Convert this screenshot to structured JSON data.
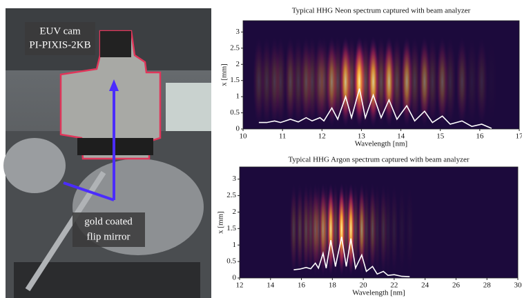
{
  "photo": {
    "camera_label": [
      "EUV cam",
      "PI-PIXIS-2KB"
    ],
    "mirror_label": [
      "gold coated",
      "flip mirror"
    ]
  },
  "chart_data": [
    {
      "type": "heatmap-line",
      "title": "Typical HHG Neon spectrum captured with beam analyzer",
      "xlabel": "Wavelength [nm]",
      "ylabel": "x [mm]",
      "xlim": [
        10,
        17
      ],
      "ylim": [
        0,
        3.35
      ],
      "xticks": [
        10,
        11,
        12,
        13,
        14,
        15,
        16,
        17
      ],
      "yticks": [
        0,
        0.5,
        1,
        1.5,
        2,
        2.5,
        3
      ],
      "series": [
        {
          "color": "#ffffff",
          "x": [
            10.4,
            10.6,
            10.8,
            10.95,
            11.2,
            11.4,
            11.6,
            11.75,
            11.95,
            12.05,
            12.25,
            12.4,
            12.6,
            12.75,
            12.95,
            13.1,
            13.3,
            13.5,
            13.7,
            13.9,
            14.15,
            14.35,
            14.6,
            14.8,
            15.05,
            15.25,
            15.55,
            15.8,
            16.05,
            16.3
          ],
          "values": [
            0.2,
            0.2,
            0.25,
            0.2,
            0.3,
            0.22,
            0.35,
            0.25,
            0.35,
            0.25,
            0.65,
            0.3,
            1.0,
            0.35,
            1.25,
            0.35,
            1.05,
            0.35,
            0.9,
            0.3,
            0.72,
            0.25,
            0.55,
            0.2,
            0.4,
            0.15,
            0.25,
            0.08,
            0.15,
            0.02
          ]
        }
      ]
    },
    {
      "type": "heatmap-line",
      "title": "Typical HHG Argon spectrum captured with beam analyzer",
      "xlabel": "Wavelength [nm]",
      "ylabel": "x [mm]",
      "xlim": [
        12,
        30
      ],
      "ylim": [
        0,
        3.37
      ],
      "xticks": [
        12,
        14,
        16,
        18,
        20,
        22,
        24,
        26,
        28,
        30
      ],
      "yticks": [
        0,
        0.5,
        1,
        1.5,
        2,
        2.5,
        3
      ],
      "series": [
        {
          "color": "#ffffff",
          "x": [
            15.5,
            15.9,
            16.3,
            16.6,
            16.9,
            17.1,
            17.4,
            17.6,
            17.9,
            18.2,
            18.6,
            18.9,
            19.2,
            19.5,
            19.9,
            20.2,
            20.6,
            20.9,
            21.3,
            21.6,
            22,
            22.5,
            23
          ],
          "values": [
            0.25,
            0.27,
            0.32,
            0.28,
            0.45,
            0.3,
            0.75,
            0.3,
            1.15,
            0.35,
            1.25,
            0.35,
            1.2,
            0.3,
            0.7,
            0.2,
            0.35,
            0.12,
            0.2,
            0.08,
            0.1,
            0.05,
            0.04
          ]
        }
      ]
    }
  ]
}
